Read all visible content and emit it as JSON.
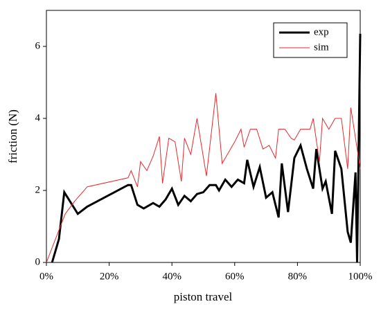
{
  "chart_data": {
    "type": "line",
    "xlabel": "piston travel",
    "ylabel": "friction (N)",
    "xlim": [
      0,
      100
    ],
    "ylim": [
      0,
      7
    ],
    "xticks": [
      {
        "value": 0,
        "label": "0%"
      },
      {
        "value": 20,
        "label": "20%"
      },
      {
        "value": 40,
        "label": "40%"
      },
      {
        "value": 60,
        "label": "60%"
      },
      {
        "value": 80,
        "label": "80%"
      },
      {
        "value": 100,
        "label": "100%"
      }
    ],
    "yticks": [
      0,
      2,
      4,
      6
    ],
    "legend": "upper right",
    "series": [
      {
        "name": "exp",
        "color": "#000000",
        "x": [
          1.8,
          4,
          5.7,
          10,
          13,
          26,
          27,
          29,
          31,
          32,
          34,
          36,
          38,
          40,
          42,
          44,
          46,
          48,
          50,
          52,
          54,
          55,
          57,
          59,
          61,
          63,
          64,
          66,
          68,
          70,
          72,
          74,
          75,
          77,
          79,
          81,
          83,
          85,
          86,
          88,
          89,
          91,
          92,
          94,
          96,
          97,
          98.5,
          99,
          100
        ],
        "values": [
          0,
          0.65,
          1.95,
          1.35,
          1.55,
          2.15,
          2.15,
          1.6,
          1.5,
          1.55,
          1.65,
          1.55,
          1.75,
          2.05,
          1.6,
          1.85,
          1.7,
          1.9,
          1.95,
          2.15,
          2.15,
          2.0,
          2.3,
          2.1,
          2.3,
          2.2,
          2.85,
          2.1,
          2.65,
          1.8,
          1.95,
          1.25,
          2.75,
          1.4,
          2.9,
          3.25,
          2.6,
          2.05,
          3.15,
          2.05,
          2.25,
          1.35,
          3.1,
          2.6,
          0.85,
          0.55,
          2.5,
          0,
          6.35
        ]
      },
      {
        "name": "sim",
        "color": "#e8262b",
        "x": [
          0,
          6,
          9,
          13,
          26,
          27,
          29,
          30,
          32,
          34,
          36,
          37,
          39,
          41,
          43,
          44,
          46,
          48,
          51,
          54,
          56,
          60,
          62,
          63,
          65,
          67,
          69,
          71,
          73,
          74,
          76,
          78,
          79,
          81,
          84,
          85,
          87,
          88,
          90,
          92,
          94,
          96,
          97,
          100
        ],
        "values": [
          0,
          1.35,
          1.7,
          2.1,
          2.35,
          2.55,
          2.1,
          2.8,
          2.55,
          2.95,
          3.5,
          2.2,
          3.45,
          3.35,
          2.25,
          3.45,
          3.0,
          4.0,
          2.4,
          4.7,
          2.75,
          3.35,
          3.7,
          3.2,
          3.7,
          3.7,
          3.15,
          3.25,
          2.9,
          3.7,
          3.7,
          3.45,
          3.4,
          3.7,
          3.7,
          4.0,
          2.8,
          4.0,
          3.7,
          4.0,
          4.0,
          2.6,
          4.3,
          2.6
        ]
      }
    ]
  }
}
